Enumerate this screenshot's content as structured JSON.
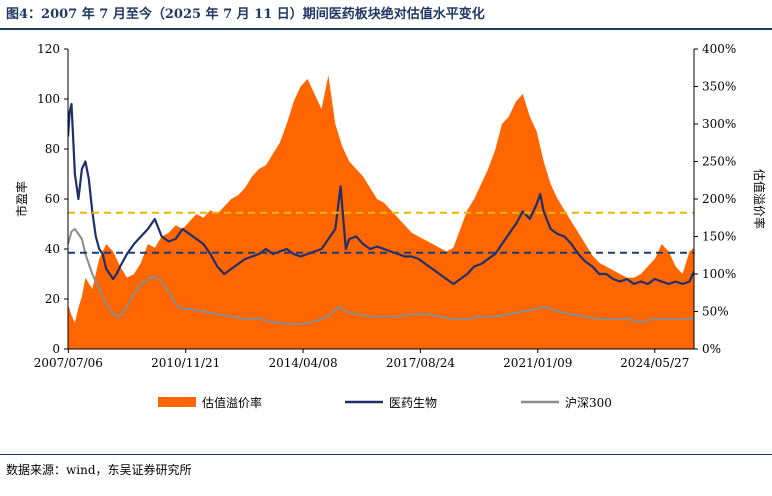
{
  "title": "图4：2007 年 7 月至今（2025 年 7 月 11 日）期间医药板块绝对估值水平变化",
  "source": "数据来源：wind，东吴证券研究所",
  "chart_data": {
    "type": "line",
    "title": "图4：2007 年 7 月至今（2025 年 7 月 11 日）期间医药板块绝对估值水平变化",
    "ylabel": "市盈率",
    "y2label": "估值溢价率",
    "ylim": [
      0,
      120
    ],
    "y2lim": [
      0,
      400
    ],
    "yticks": [
      "0",
      "20",
      "40",
      "60",
      "80",
      "100",
      "120"
    ],
    "y2ticks": [
      "0%",
      "50%",
      "100%",
      "150%",
      "200%",
      "250%",
      "300%",
      "350%",
      "400%"
    ],
    "xlim": [
      2007.5,
      2025.53
    ],
    "xticks": [
      {
        "label": "2007/07/06",
        "x": 2007.51
      },
      {
        "label": "2010/11/21",
        "x": 2010.89
      },
      {
        "label": "2014/04/08",
        "x": 2014.27
      },
      {
        "label": "2017/08/24",
        "x": 2017.65
      },
      {
        "label": "2021/01/09",
        "x": 2021.03
      },
      {
        "label": "2024/05/27",
        "x": 2024.4
      }
    ],
    "legend_position": "bottom",
    "grid": false,
    "reference_lines": [
      {
        "axis": "y",
        "value": 54.5,
        "color": "#e6b800",
        "style": "dashed"
      },
      {
        "axis": "y",
        "value": 38.5,
        "color": "#1f3b73",
        "style": "dashed"
      }
    ],
    "series": [
      {
        "name": "估值溢价率",
        "kind": "area",
        "axis": "right",
        "color": "#ff6600",
        "x": [
          2007.5,
          2007.6,
          2007.7,
          2007.8,
          2007.9,
          2008.0,
          2008.2,
          2008.4,
          2008.6,
          2008.8,
          2009.0,
          2009.2,
          2009.4,
          2009.6,
          2009.8,
          2010.0,
          2010.2,
          2010.4,
          2010.6,
          2010.8,
          2011.0,
          2011.2,
          2011.4,
          2011.6,
          2011.8,
          2012.0,
          2012.2,
          2012.4,
          2012.6,
          2012.8,
          2013.0,
          2013.2,
          2013.4,
          2013.6,
          2013.8,
          2014.0,
          2014.2,
          2014.4,
          2014.6,
          2014.8,
          2015.0,
          2015.2,
          2015.4,
          2015.6,
          2015.8,
          2016.0,
          2016.2,
          2016.4,
          2016.6,
          2016.8,
          2017.0,
          2017.2,
          2017.4,
          2017.6,
          2017.8,
          2018.0,
          2018.2,
          2018.4,
          2018.6,
          2018.8,
          2019.0,
          2019.2,
          2019.4,
          2019.6,
          2019.8,
          2020.0,
          2020.2,
          2020.4,
          2020.6,
          2020.8,
          2021.0,
          2021.2,
          2021.4,
          2021.6,
          2021.8,
          2022.0,
          2022.2,
          2022.4,
          2022.6,
          2022.8,
          2023.0,
          2023.2,
          2023.4,
          2023.6,
          2023.8,
          2024.0,
          2024.2,
          2024.4,
          2024.6,
          2024.8,
          2025.0,
          2025.2,
          2025.4,
          2025.53
        ],
        "values": [
          60,
          45,
          35,
          55,
          70,
          95,
          80,
          120,
          140,
          130,
          110,
          95,
          100,
          115,
          140,
          135,
          150,
          155,
          165,
          160,
          170,
          180,
          175,
          185,
          180,
          190,
          200,
          205,
          215,
          230,
          240,
          245,
          260,
          275,
          300,
          330,
          350,
          360,
          340,
          320,
          365,
          300,
          270,
          250,
          240,
          230,
          215,
          200,
          195,
          185,
          175,
          165,
          155,
          150,
          145,
          140,
          135,
          130,
          135,
          160,
          185,
          200,
          220,
          240,
          265,
          300,
          310,
          330,
          340,
          310,
          290,
          250,
          220,
          200,
          185,
          170,
          155,
          140,
          125,
          115,
          110,
          105,
          100,
          95,
          95,
          100,
          110,
          120,
          140,
          130,
          110,
          100,
          130,
          135
        ]
      },
      {
        "name": "医药生物",
        "kind": "line",
        "axis": "left",
        "color": "#1f2f6b",
        "x": [
          2007.5,
          2007.55,
          2007.6,
          2007.7,
          2007.8,
          2007.9,
          2008.0,
          2008.1,
          2008.2,
          2008.3,
          2008.4,
          2008.5,
          2008.6,
          2008.7,
          2008.8,
          2008.9,
          2009.0,
          2009.2,
          2009.4,
          2009.6,
          2009.8,
          2010.0,
          2010.2,
          2010.4,
          2010.6,
          2010.8,
          2011.0,
          2011.2,
          2011.4,
          2011.6,
          2011.8,
          2012.0,
          2012.2,
          2012.4,
          2012.6,
          2012.8,
          2013.0,
          2013.2,
          2013.4,
          2013.6,
          2013.8,
          2014.0,
          2014.2,
          2014.4,
          2014.6,
          2014.8,
          2015.0,
          2015.2,
          2015.35,
          2015.5,
          2015.6,
          2015.8,
          2016.0,
          2016.2,
          2016.4,
          2016.6,
          2016.8,
          2017.0,
          2017.2,
          2017.4,
          2017.6,
          2017.8,
          2018.0,
          2018.2,
          2018.4,
          2018.6,
          2018.8,
          2019.0,
          2019.2,
          2019.4,
          2019.6,
          2019.8,
          2020.0,
          2020.2,
          2020.4,
          2020.6,
          2020.8,
          2021.0,
          2021.1,
          2021.2,
          2021.4,
          2021.6,
          2021.8,
          2022.0,
          2022.2,
          2022.4,
          2022.6,
          2022.8,
          2023.0,
          2023.2,
          2023.4,
          2023.6,
          2023.8,
          2024.0,
          2024.2,
          2024.4,
          2024.6,
          2024.8,
          2025.0,
          2025.2,
          2025.4,
          2025.53
        ],
        "values": [
          85,
          95,
          98,
          70,
          60,
          72,
          75,
          68,
          55,
          45,
          40,
          38,
          32,
          30,
          28,
          30,
          33,
          38,
          42,
          45,
          48,
          52,
          45,
          43,
          44,
          48,
          46,
          44,
          42,
          38,
          33,
          30,
          32,
          34,
          36,
          37,
          38,
          40,
          38,
          39,
          40,
          38,
          37,
          38,
          39,
          40,
          44,
          48,
          65,
          40,
          44,
          45,
          42,
          40,
          41,
          40,
          39,
          38,
          37,
          37,
          36,
          34,
          32,
          30,
          28,
          26,
          28,
          30,
          33,
          34,
          36,
          38,
          42,
          46,
          50,
          55,
          52,
          58,
          62,
          55,
          48,
          46,
          45,
          42,
          38,
          35,
          33,
          30,
          30,
          28,
          27,
          28,
          26,
          27,
          26,
          28,
          27,
          26,
          27,
          26,
          27,
          31
        ]
      },
      {
        "name": "沪深300",
        "kind": "line",
        "axis": "left",
        "color": "#8c8c8c",
        "x": [
          2007.5,
          2007.6,
          2007.7,
          2007.8,
          2007.9,
          2008.0,
          2008.2,
          2008.4,
          2008.6,
          2008.8,
          2009.0,
          2009.2,
          2009.4,
          2009.6,
          2009.8,
          2010.0,
          2010.2,
          2010.4,
          2010.6,
          2010.8,
          2011.0,
          2011.4,
          2011.8,
          2012.2,
          2012.6,
          2013.0,
          2013.4,
          2013.8,
          2014.2,
          2014.6,
          2015.0,
          2015.3,
          2015.5,
          2015.8,
          2016.2,
          2016.6,
          2017.0,
          2017.4,
          2017.8,
          2018.2,
          2018.6,
          2019.0,
          2019.4,
          2019.8,
          2020.2,
          2020.6,
          2021.0,
          2021.2,
          2021.6,
          2022.0,
          2022.4,
          2022.8,
          2023.2,
          2023.6,
          2024.0,
          2024.4,
          2024.8,
          2025.2,
          2025.53
        ],
        "values": [
          42,
          47,
          48,
          46,
          44,
          38,
          30,
          24,
          18,
          14,
          13,
          17,
          22,
          26,
          28,
          29,
          27,
          23,
          18,
          16,
          16,
          15,
          14,
          13,
          12,
          12,
          11,
          10,
          10,
          11,
          13,
          17,
          15,
          14,
          13,
          13,
          13,
          14,
          14,
          13,
          12,
          12,
          13,
          13,
          14,
          15,
          16,
          17,
          15,
          14,
          13,
          12,
          12,
          12,
          11,
          12,
          12,
          12,
          12
        ]
      }
    ]
  }
}
